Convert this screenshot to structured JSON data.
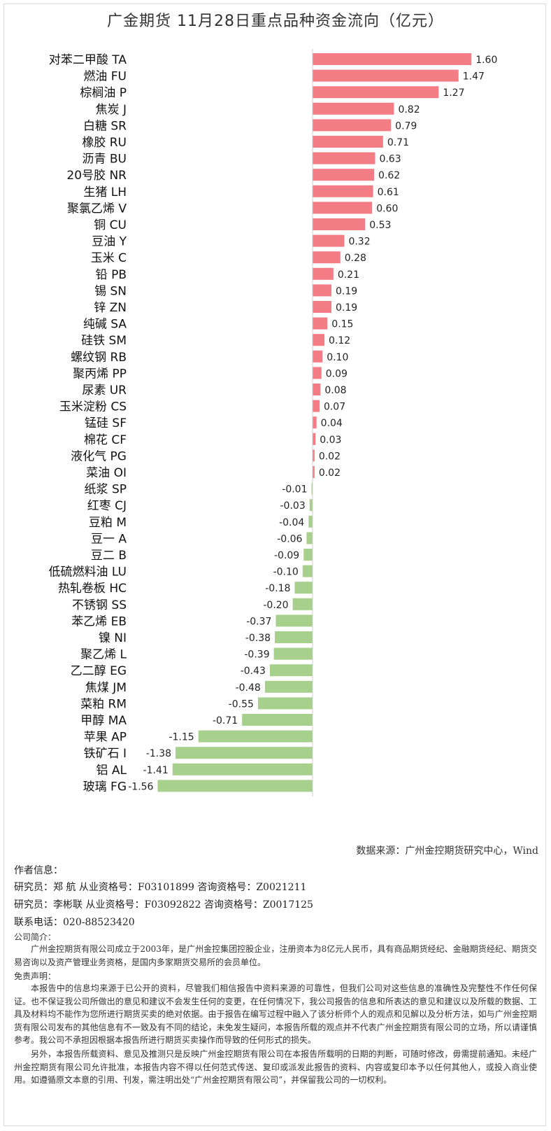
{
  "title": "广金期货 11月28日重点品种资金流向（亿元）",
  "colors": {
    "positive": "#f47c84",
    "negative": "#a7d08c",
    "axis": "#cccccc"
  },
  "chart_data": {
    "type": "bar",
    "orientation": "horizontal",
    "categories": [
      "对苯二甲酸 TA",
      "燃油 FU",
      "棕榈油 P",
      "焦炭 J",
      "白糖 SR",
      "橡胶 RU",
      "沥青 BU",
      "20号胶 NR",
      "生猪 LH",
      "聚氯乙烯 V",
      "铜 CU",
      "豆油 Y",
      "玉米 C",
      "铅 PB",
      "锡 SN",
      "锌 ZN",
      "纯碱 SA",
      "硅铁 SM",
      "螺纹钢 RB",
      "聚丙烯 PP",
      "尿素 UR",
      "玉米淀粉 CS",
      "锰硅 SF",
      "棉花 CF",
      "液化气 PG",
      "菜油 OI",
      "纸浆 SP",
      "红枣 CJ",
      "豆粕 M",
      "豆一 A",
      "豆二 B",
      "低硫燃料油 LU",
      "热轧卷板 HC",
      "不锈钢 SS",
      "苯乙烯 EB",
      "镍 NI",
      "聚乙烯 L",
      "乙二醇 EG",
      "焦煤 JM",
      "菜粕 RM",
      "甲醇 MA",
      "苹果 AP",
      "铁矿石 I",
      "铝 AL",
      "玻璃 FG"
    ],
    "values": [
      1.6,
      1.47,
      1.27,
      0.82,
      0.79,
      0.71,
      0.63,
      0.62,
      0.61,
      0.6,
      0.53,
      0.32,
      0.28,
      0.21,
      0.19,
      0.19,
      0.15,
      0.12,
      0.1,
      0.09,
      0.08,
      0.07,
      0.04,
      0.03,
      0.02,
      0.02,
      -0.01,
      -0.03,
      -0.04,
      -0.06,
      -0.09,
      -0.1,
      -0.18,
      -0.2,
      -0.37,
      -0.38,
      -0.39,
      -0.43,
      -0.48,
      -0.55,
      -0.71,
      -1.15,
      -1.38,
      -1.41,
      -1.56
    ],
    "value_labels": [
      "1.60",
      "1.47",
      "1.27",
      "0.82",
      "0.79",
      "0.71",
      "0.63",
      "0.62",
      "0.61",
      "0.60",
      "0.53",
      "0.32",
      "0.28",
      "0.21",
      "0.19",
      "0.19",
      "0.15",
      "0.12",
      "0.10",
      "0.09",
      "0.08",
      "0.07",
      "0.04",
      "0.03",
      "0.02",
      "0.02",
      "-0.01",
      "-0.03",
      "-0.04",
      "-0.06",
      "-0.09",
      "-0.10",
      "-0.18",
      "-0.20",
      "-0.37",
      "-0.38",
      "-0.39",
      "-0.43",
      "-0.48",
      "-0.55",
      "-0.71",
      "-1.15",
      "-1.38",
      "-1.41",
      "-1.56"
    ],
    "xlim": [
      -1.7,
      2.0
    ]
  },
  "source": "数据来源：广州金控期货研究中心，Wind",
  "author_heading": "作者信息：",
  "researchers": [
    "研究员：郑 航    从业资格号：F03101899  咨询资格号：Z0021211",
    "研究员：李彬联   从业资格号：F03092822  咨询资格号：Z0017125"
  ],
  "phone": "联系电话：020-88523420",
  "company_heading": "公司简介：",
  "company_text": "广州金控期货有限公司成立于2003年，是广州金控集团控股企业，注册资本为8亿元人民币，具有商品期货经纪、金融期货经纪、期货交易咨询以及资产管理业务资格，是国内多家期货交易所的会员单位。",
  "disclaimer_heading": "免责声明：",
  "disclaimer_1": "本报告中的信息均来源于已公开的资料，尽管我们相信报告中资料来源的可靠性，但我们公司对这些信息的准确性及完整性不作任何保证。也不保证我公司所做出的意见和建议不会发生任何的变更，在任何情况下，我公司报告的信息和所表达的意见和建议以及所载的数据、工具及材料均不能作为您所进行期货买卖的绝对依据。由于报告在编写过程中融入了该分析师个人的观点和见解以及分析方法，如与广州金控期货有限公司发布的其他信息有不一致及有不同的结论，未免发生疑问，本报告所载的观点并不代表广州金控期货有限公司的立场，所以请谨慎参考。我公司不承担因根据本报告所进行期货买卖操作而导致的任何形式的损失。",
  "disclaimer_2": "另外，本报告所载资料、意见及推测只是反映广州金控期货有限公司在本报告所载明的日期的判断，可随时修改，毋需提前通知。未经广州金控期货有限公司允许批准，本报告内容不得以任何范式传送、复印或派发此报告的资料、内容或复印本予以任何其他人，或投入商业使用。如遵循原文本意的引用、刊发，需注明出处“广州金控期货有限公司”，并保留我公司的一切权利。"
}
